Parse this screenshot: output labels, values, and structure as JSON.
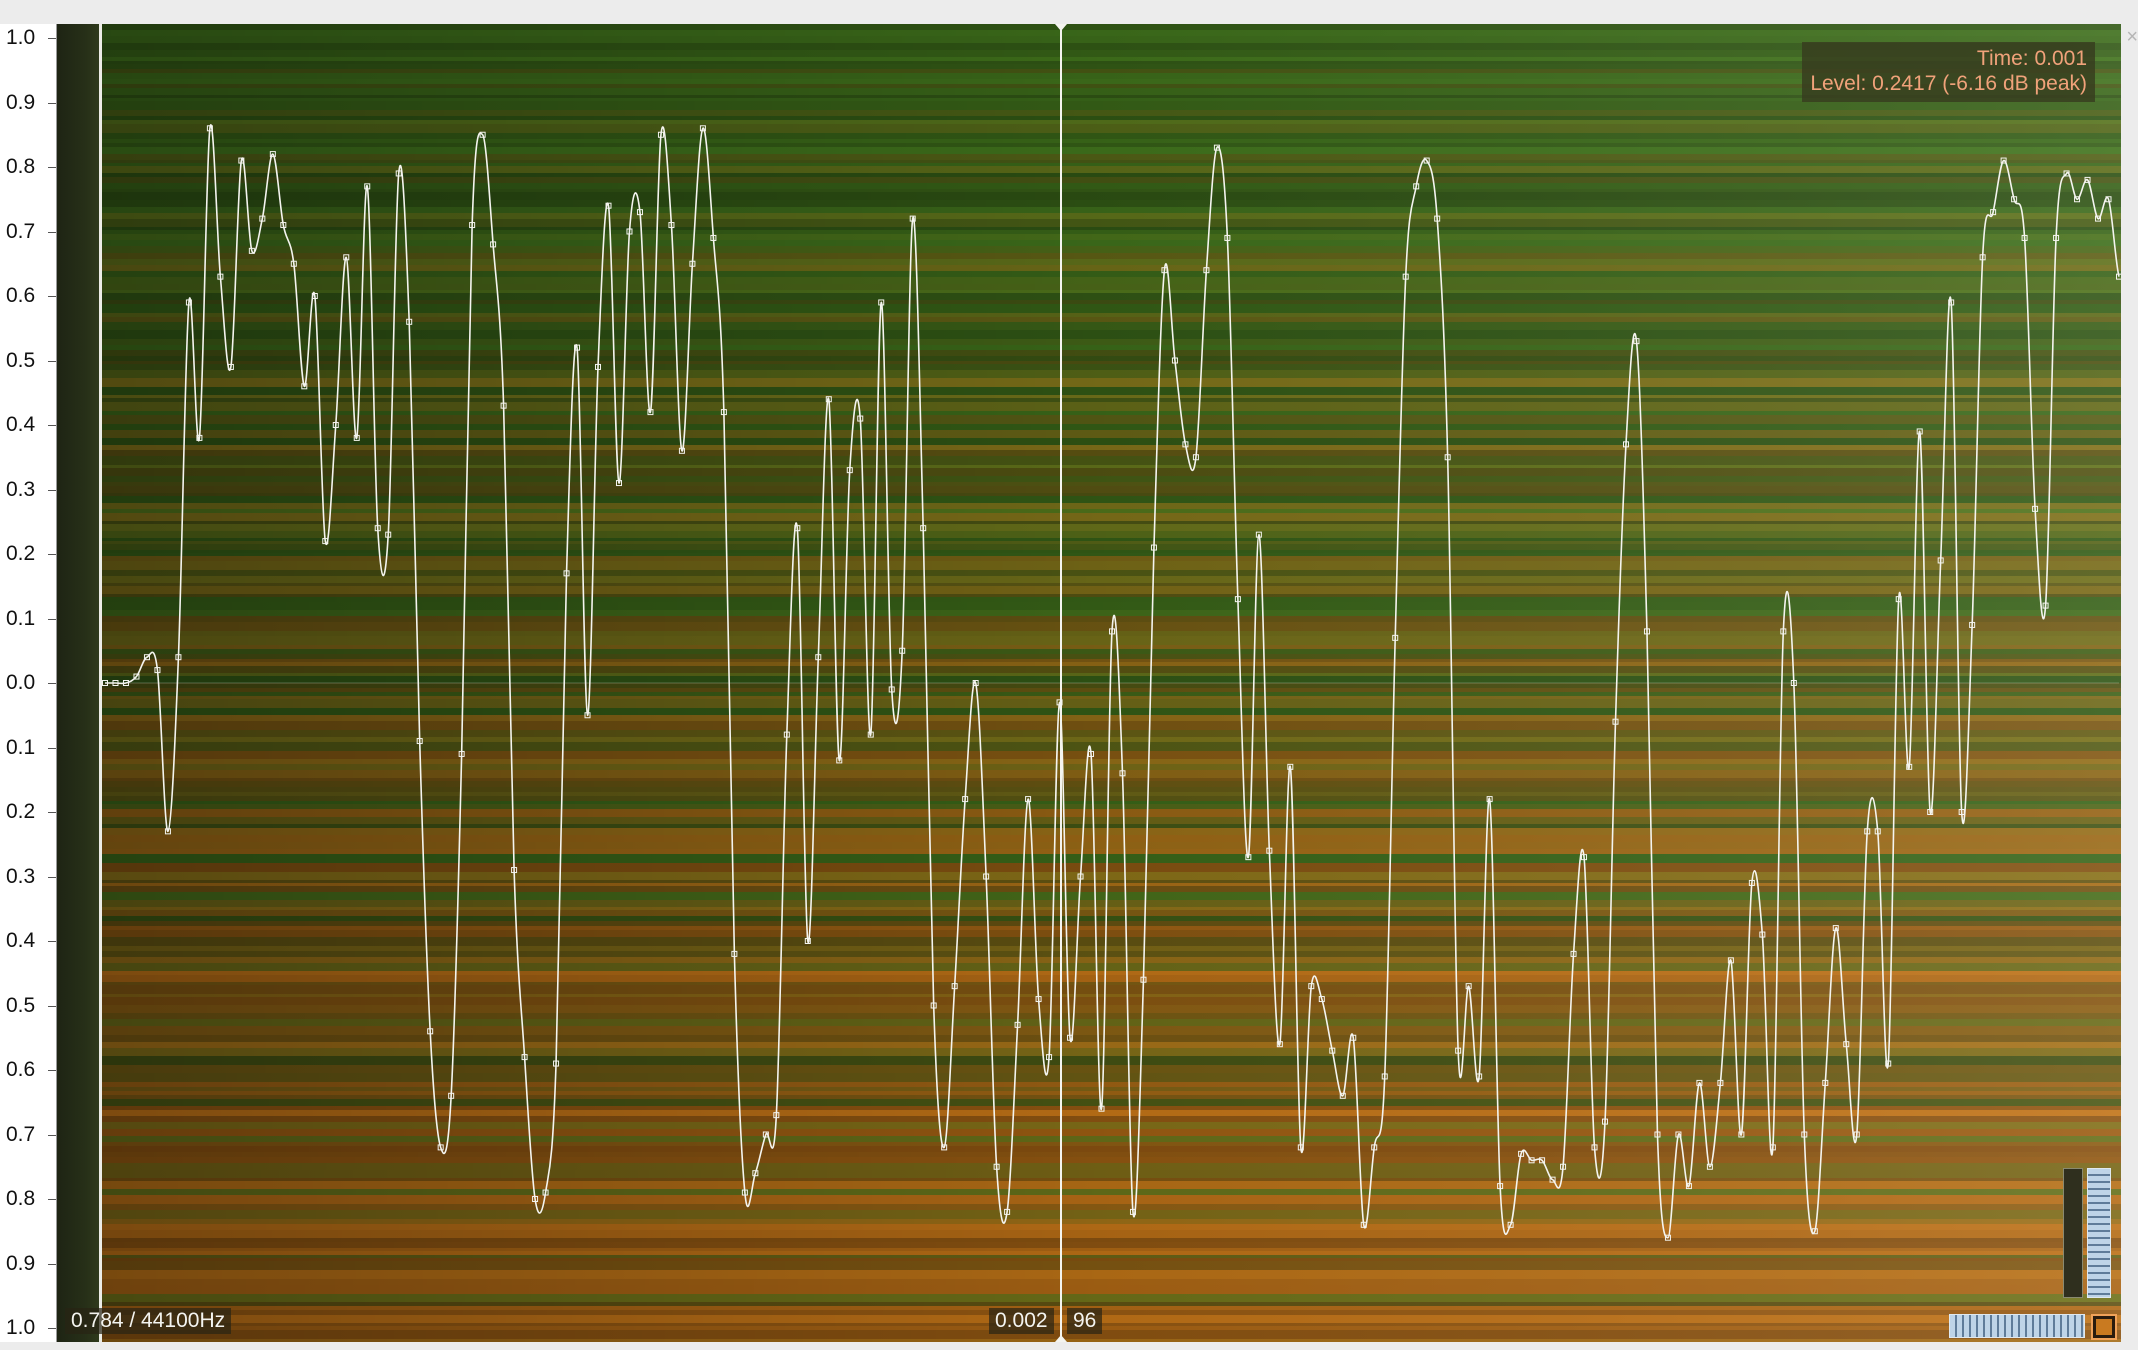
{
  "window": {
    "title": "",
    "close_glyph": "×"
  },
  "scale": {
    "ticks": [
      "1.0",
      "0.9",
      "0.8",
      "0.7",
      "0.6",
      "0.5",
      "0.4",
      "0.3",
      "0.2",
      "0.1",
      "0.0",
      "0.1",
      "0.2",
      "0.3",
      "0.4",
      "0.5",
      "0.6",
      "0.7",
      "0.8",
      "0.9",
      "1.0"
    ]
  },
  "readout": {
    "time": "Time: 0.001",
    "level": "Level: 0.2417 (-6.16 dB peak)"
  },
  "status": {
    "position": "0.784 / 44100Hz",
    "playhead_time": "0.002",
    "playhead_sample": "96"
  },
  "colors": {
    "accent": "#f0a27a",
    "waveform": "#f4f4ef",
    "spectrum_green": "#3f6b1c",
    "spectrum_orange": "#b06a18"
  },
  "icons": {
    "vertical_zoom": "vertical-zoom-icon",
    "horizontal_zoom": "horizontal-zoom-icon",
    "colour_scheme": "colour-scheme-icon"
  },
  "chart_data": {
    "type": "line",
    "ylim": [
      -1.0,
      1.0
    ],
    "playhead_fraction": 0.485,
    "samples": [
      0.0,
      0.0,
      0.0,
      0.01,
      0.04,
      0.02,
      -0.23,
      0.04,
      0.59,
      0.38,
      0.86,
      0.63,
      0.49,
      0.81,
      0.67,
      0.72,
      0.82,
      0.71,
      0.65,
      0.46,
      0.6,
      0.22,
      0.4,
      0.66,
      0.38,
      0.77,
      0.24,
      0.23,
      0.79,
      0.56,
      -0.09,
      -0.54,
      -0.72,
      -0.64,
      -0.11,
      0.71,
      0.85,
      0.68,
      0.43,
      -0.29,
      -0.58,
      -0.8,
      -0.79,
      -0.59,
      0.17,
      0.52,
      -0.05,
      0.49,
      0.74,
      0.31,
      0.7,
      0.73,
      0.42,
      0.85,
      0.71,
      0.36,
      0.65,
      0.86,
      0.69,
      0.42,
      -0.42,
      -0.79,
      -0.76,
      -0.7,
      -0.67,
      -0.08,
      0.24,
      -0.4,
      0.04,
      0.44,
      -0.12,
      0.33,
      0.41,
      -0.08,
      0.59,
      -0.01,
      0.05,
      0.72,
      0.24,
      -0.5,
      -0.72,
      -0.47,
      -0.18,
      0.0,
      -0.3,
      -0.75,
      -0.82,
      -0.53,
      -0.18,
      -0.49,
      -0.58,
      -0.03,
      -0.55,
      -0.3,
      -0.11,
      -0.66,
      0.08,
      -0.14,
      -0.82,
      -0.46,
      0.21,
      0.64,
      0.5,
      0.37,
      0.35,
      0.64,
      0.83,
      0.69,
      0.13,
      -0.27,
      0.23,
      -0.26,
      -0.56,
      -0.13,
      -0.72,
      -0.47,
      -0.49,
      -0.57,
      -0.64,
      -0.55,
      -0.84,
      -0.72,
      -0.61,
      0.07,
      0.63,
      0.77,
      0.81,
      0.72,
      0.35,
      -0.57,
      -0.47,
      -0.61,
      -0.18,
      -0.78,
      -0.84,
      -0.73,
      -0.74,
      -0.74,
      -0.77,
      -0.75,
      -0.42,
      -0.27,
      -0.72,
      -0.68,
      -0.06,
      0.37,
      0.53,
      0.08,
      -0.7,
      -0.86,
      -0.7,
      -0.78,
      -0.62,
      -0.75,
      -0.62,
      -0.43,
      -0.7,
      -0.31,
      -0.39,
      -0.72,
      0.08,
      0.0,
      -0.7,
      -0.85,
      -0.62,
      -0.38,
      -0.56,
      -0.7,
      -0.23,
      -0.23,
      -0.59,
      0.13,
      -0.13,
      0.39,
      -0.2,
      0.19,
      0.59,
      -0.2,
      0.09,
      0.66,
      0.73,
      0.81,
      0.75,
      0.69,
      0.27,
      0.12,
      0.69,
      0.79,
      0.75,
      0.78,
      0.72,
      0.75,
      0.63
    ]
  }
}
